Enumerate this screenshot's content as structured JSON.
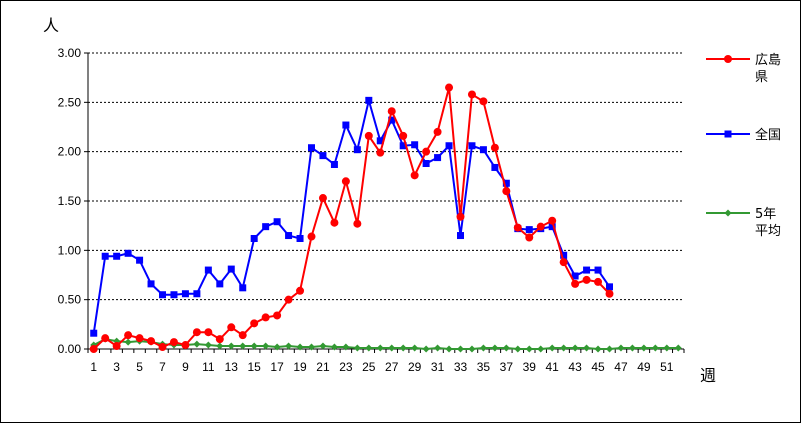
{
  "chart_data": {
    "type": "line",
    "y_unit_label": "人",
    "x_unit_label": "週",
    "ylim": [
      0,
      3
    ],
    "y_ticks": [
      "0.00",
      "0.50",
      "1.00",
      "1.50",
      "2.00",
      "2.50",
      "3.00"
    ],
    "y_tick_values": [
      0,
      0.5,
      1,
      1.5,
      2,
      2.5,
      3
    ],
    "x_range": [
      1,
      52
    ],
    "x_ticks": [
      "1",
      "3",
      "5",
      "7",
      "9",
      "11",
      "13",
      "15",
      "17",
      "19",
      "21",
      "23",
      "25",
      "27",
      "29",
      "31",
      "33",
      "35",
      "37",
      "39",
      "41",
      "43",
      "45",
      "47",
      "49",
      "51"
    ],
    "x_tick_values": [
      1,
      3,
      5,
      7,
      9,
      11,
      13,
      15,
      17,
      19,
      21,
      23,
      25,
      27,
      29,
      31,
      33,
      35,
      37,
      39,
      41,
      43,
      45,
      47,
      49,
      51
    ],
    "grid": "horizontal dashed",
    "legend_position": "right",
    "series": [
      {
        "name": "広島\n県",
        "color": "#ff0000",
        "marker": "circle",
        "x": [
          1,
          2,
          3,
          4,
          5,
          6,
          7,
          8,
          9,
          10,
          11,
          12,
          13,
          14,
          15,
          16,
          17,
          18,
          19,
          20,
          21,
          22,
          23,
          24,
          25,
          26,
          27,
          28,
          29,
          30,
          31,
          32,
          33,
          34,
          35,
          36,
          37,
          38,
          39,
          40,
          41,
          42,
          43,
          44,
          45,
          46
        ],
        "values": [
          0.0,
          0.11,
          0.03,
          0.14,
          0.11,
          0.08,
          0.02,
          0.07,
          0.04,
          0.17,
          0.17,
          0.1,
          0.22,
          0.14,
          0.26,
          0.32,
          0.34,
          0.5,
          0.59,
          1.14,
          1.53,
          1.28,
          1.7,
          1.27,
          2.16,
          1.99,
          2.41,
          2.16,
          1.76,
          2.0,
          2.2,
          2.65,
          1.34,
          2.58,
          2.51,
          2.04,
          1.6,
          1.23,
          1.13,
          1.24,
          1.3,
          0.88,
          0.66,
          0.7,
          0.68,
          0.56
        ]
      },
      {
        "name": "全国",
        "color": "#0000ff",
        "marker": "square",
        "x": [
          1,
          2,
          3,
          4,
          5,
          6,
          7,
          8,
          9,
          10,
          11,
          12,
          13,
          14,
          15,
          16,
          17,
          18,
          19,
          20,
          21,
          22,
          23,
          24,
          25,
          26,
          27,
          28,
          29,
          30,
          31,
          32,
          33,
          34,
          35,
          36,
          37,
          38,
          39,
          40,
          41,
          42,
          43,
          44,
          45,
          46
        ],
        "values": [
          0.16,
          0.94,
          0.94,
          0.97,
          0.9,
          0.66,
          0.55,
          0.55,
          0.56,
          0.56,
          0.8,
          0.66,
          0.81,
          0.62,
          1.12,
          1.24,
          1.29,
          1.15,
          1.12,
          2.04,
          1.96,
          1.87,
          2.27,
          2.02,
          2.52,
          2.11,
          2.32,
          2.06,
          2.07,
          1.88,
          1.94,
          2.06,
          1.15,
          2.06,
          2.02,
          1.84,
          1.68,
          1.22,
          1.21,
          1.22,
          1.24,
          0.95,
          0.74,
          0.8,
          0.8,
          0.63
        ]
      },
      {
        "name": "5年\n平均",
        "color": "#339933",
        "marker": "diamond",
        "x": [
          1,
          2,
          3,
          4,
          5,
          6,
          7,
          8,
          9,
          10,
          11,
          12,
          13,
          14,
          15,
          16,
          17,
          18,
          19,
          20,
          21,
          22,
          23,
          24,
          25,
          26,
          27,
          28,
          29,
          30,
          31,
          32,
          33,
          34,
          35,
          36,
          37,
          38,
          39,
          40,
          41,
          42,
          43,
          44,
          45,
          46,
          47,
          48,
          49,
          50,
          51,
          52
        ],
        "values": [
          0.04,
          0.1,
          0.08,
          0.07,
          0.08,
          0.07,
          0.05,
          0.04,
          0.04,
          0.05,
          0.04,
          0.03,
          0.03,
          0.03,
          0.03,
          0.03,
          0.02,
          0.03,
          0.02,
          0.02,
          0.03,
          0.02,
          0.02,
          0.01,
          0.01,
          0.01,
          0.01,
          0.01,
          0.01,
          0.0,
          0.01,
          0.0,
          0.0,
          0.0,
          0.01,
          0.01,
          0.01,
          0.0,
          0.0,
          0.0,
          0.01,
          0.01,
          0.01,
          0.01,
          0.0,
          0.0,
          0.01,
          0.01,
          0.01,
          0.01,
          0.01,
          0.01
        ]
      }
    ]
  }
}
